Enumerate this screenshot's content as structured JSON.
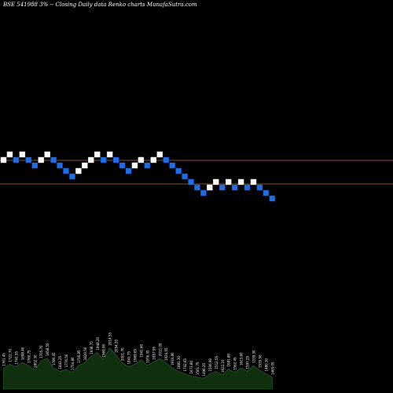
{
  "title": "BSE 541988  3% -- Closing Daily data  Renko  charts MunafaSutra.com",
  "colors": {
    "background": "#000000",
    "up_brick": "#ffffff",
    "down_brick": "#1e6fe6",
    "level_line": "#8a4a28",
    "volume_fill": "#0f2f0f",
    "volume_stroke": "#2e6b2e",
    "label_text": "#ffffff"
  },
  "chart_data": {
    "type": "renko",
    "brick_direction": [
      "up",
      "up",
      "down",
      "up",
      "down",
      "down",
      "up",
      "up",
      "down",
      "down",
      "down",
      "down",
      "up",
      "up",
      "up",
      "up",
      "down",
      "up",
      "down",
      "down",
      "down",
      "up",
      "up",
      "down",
      "up",
      "up",
      "down",
      "down",
      "down",
      "down",
      "down",
      "down",
      "down",
      "up",
      "up",
      "down",
      "up",
      "down",
      "up",
      "down",
      "up",
      "down",
      "down",
      "down"
    ],
    "brick_levels": [
      1,
      2,
      1,
      2,
      1,
      0,
      1,
      2,
      1,
      0,
      -1,
      -2,
      -1,
      0,
      1,
      2,
      1,
      2,
      1,
      0,
      -1,
      0,
      1,
      0,
      1,
      2,
      1,
      0,
      -1,
      -2,
      -3,
      -4,
      -5,
      -4,
      -3,
      -4,
      -3,
      -4,
      -3,
      -4,
      -3,
      -4,
      -5,
      -6
    ],
    "horizontal_levels": [
      "upper",
      "lower"
    ],
    "volume_relative": [
      0.35,
      0.42,
      0.38,
      0.45,
      0.4,
      0.32,
      0.48,
      0.52,
      0.36,
      0.3,
      0.33,
      0.28,
      0.4,
      0.45,
      0.55,
      0.62,
      0.5,
      0.7,
      0.58,
      0.44,
      0.38,
      0.42,
      0.5,
      0.4,
      0.46,
      0.52,
      0.44,
      0.36,
      0.3,
      0.26,
      0.22,
      0.2,
      0.18,
      0.26,
      0.3,
      0.24,
      0.34,
      0.28,
      0.36,
      0.3,
      0.4,
      0.32,
      0.26,
      0.2
    ],
    "volume_labels": [
      "1761.45",
      "1722.70",
      "1741.55",
      "1698.40",
      "1760.75",
      "1802.30",
      "1705.70",
      "1658.55",
      "1780.45",
      "1843.25",
      "1776.50",
      "1754.80",
      "1716.85",
      "1829.50",
      "1936.75",
      "1948.20",
      "1969.95",
      "2014.55",
      "2054.20",
      "2001.70",
      "1841.75",
      "1969.65",
      "1941.60",
      "1976.35",
      "1857.95",
      "2011.05",
      "1924.55",
      "1910.80",
      "1881.30",
      "1742.65",
      "1673.80",
      "1561.75",
      "1496.20",
      "1506.90",
      "1512.55",
      "1622.10",
      "1681.80",
      "1562.45",
      "1623.60",
      "1597.25",
      "1539.30",
      "1535.50",
      "1480.30",
      "1465.05"
    ]
  }
}
